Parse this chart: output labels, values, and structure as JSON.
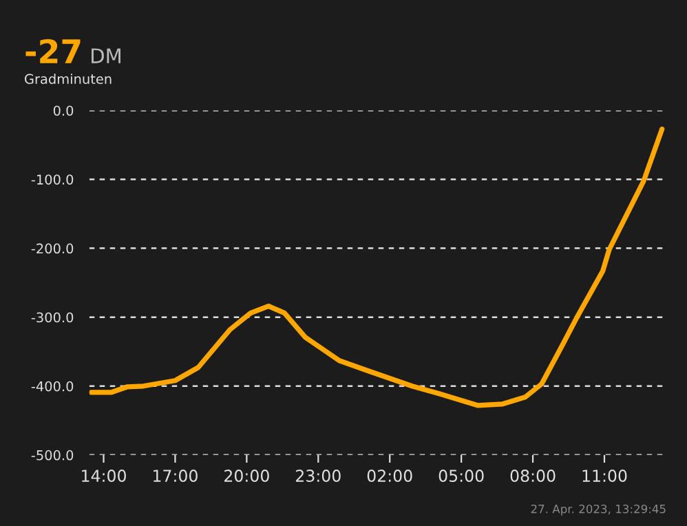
{
  "chart_data": {
    "type": "line",
    "title": "-27",
    "subtitle": "DM",
    "annotations": [
      "Gradminuten",
      "27. Apr. 2023, 13:29:45"
    ],
    "x": [
      "2023-04-26T13:29",
      "2023-04-26T14:20",
      "2023-04-26T15:00",
      "2023-04-26T15:40",
      "2023-04-26T17:00",
      "2023-04-26T17:58",
      "2023-04-26T19:18",
      "2023-04-26T20:10",
      "2023-04-26T20:55",
      "2023-04-26T21:35",
      "2023-04-26T22:27",
      "2023-04-26T23:53",
      "2023-04-27T01:01",
      "2023-04-27T02:56",
      "2023-04-27T04:04",
      "2023-04-27T05:41",
      "2023-04-27T06:44",
      "2023-04-27T07:41",
      "2023-04-27T08:22",
      "2023-04-27T09:13",
      "2023-04-27T09:53",
      "2023-04-27T10:56",
      "2023-04-27T11:12",
      "2023-04-27T12:39",
      "2023-04-27T13:25"
    ],
    "series": [
      {
        "color": "#ffa600",
        "values": [
          -409,
          -409,
          -401,
          -400,
          -392,
          -373,
          -318,
          -294,
          -284,
          -294,
          -329,
          -363,
          -377,
          -400,
          -411,
          -428,
          -426,
          -416,
          -397,
          -342,
          -298,
          -233,
          -202,
          -102,
          -27
        ]
      }
    ],
    "xlim": [
      "2023-04-26T13:24",
      "2023-04-27T13:36"
    ],
    "xticks": [
      {
        "value": "2023-04-26T14:00",
        "label": "14:00"
      },
      {
        "value": "2023-04-26T17:00",
        "label": "17:00"
      },
      {
        "value": "2023-04-26T20:00",
        "label": "20:00"
      },
      {
        "value": "2023-04-26T23:00",
        "label": "23:00"
      },
      {
        "value": "2023-04-27T02:00",
        "label": "02:00"
      },
      {
        "value": "2023-04-27T05:00",
        "label": "05:00"
      },
      {
        "value": "2023-04-27T08:00",
        "label": "08:00"
      },
      {
        "value": "2023-04-27T11:00",
        "label": "11:00"
      }
    ],
    "ylim": [
      -500,
      0
    ],
    "yticks": [
      {
        "value": 0,
        "label": "0.0"
      },
      {
        "value": -100,
        "label": "-100.0"
      },
      {
        "value": -200,
        "label": "-200.0"
      },
      {
        "value": -300,
        "label": "-300.0"
      },
      {
        "value": -400,
        "label": "-400.0"
      },
      {
        "value": -500,
        "label": "-500.0"
      }
    ],
    "grid": "y",
    "legend": false,
    "marker": "none",
    "line_style": "solid"
  }
}
